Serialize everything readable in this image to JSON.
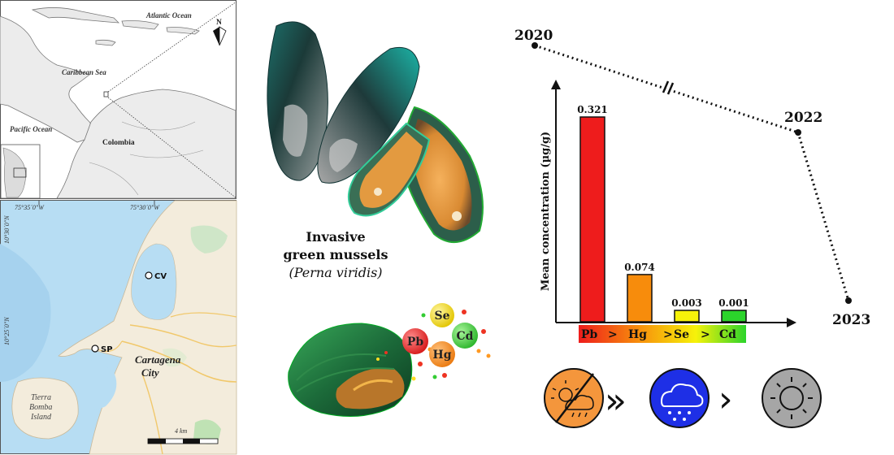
{
  "map": {
    "top": {
      "atlantic": "Atlantic Ocean",
      "caribbean": "Caribbean Sea",
      "pacific": "Pacific Ocean",
      "colombia": "Colombia",
      "north": "N"
    },
    "bottom": {
      "lon1": "75°35´0\"W",
      "lon2": "75°30´0\"W",
      "lat1": "10°30´0\"N",
      "lat2": "10°25´0\"N",
      "site_cv": "CV",
      "site_sp": "SP",
      "city_line1": "Cartagena",
      "city_line2": "City",
      "island_line1": "Tierra",
      "island_line2": "Bomba",
      "island_line3": "Island",
      "scale": "4 km"
    }
  },
  "mussels": {
    "line1": "Invasive",
    "line2": "green mussels",
    "line3": "(Perna viridis)"
  },
  "metals": [
    "Se",
    "Pb",
    "Cd",
    "Hg"
  ],
  "timeline": [
    "2020",
    "2022",
    "2023"
  ],
  "chart_data": {
    "type": "bar",
    "ylabel": "Mean concentration (µg/g)",
    "categories": [
      "Pb",
      "Hg",
      "Se",
      "Cd"
    ],
    "values": [
      0.321,
      0.074,
      0.003,
      0.001
    ],
    "value_labels": [
      "0.321",
      "0.074",
      "0.003",
      "0.001"
    ],
    "colors": [
      "#ee1c1c",
      "#f78c0c",
      "#f6f20a",
      "#2bd42b"
    ],
    "ranking": [
      "Pb",
      ">",
      "Hg",
      ">",
      "Se",
      ">",
      "Cd"
    ],
    "grid": false
  },
  "seasons": {
    "icons": [
      "dry-season-icon",
      "rainy-season-icon",
      "transition-season-icon"
    ],
    "separators": [
      "»",
      "›"
    ],
    "colors": [
      "#f4963c",
      "#1e2fe6",
      "#a6a6a6"
    ]
  }
}
